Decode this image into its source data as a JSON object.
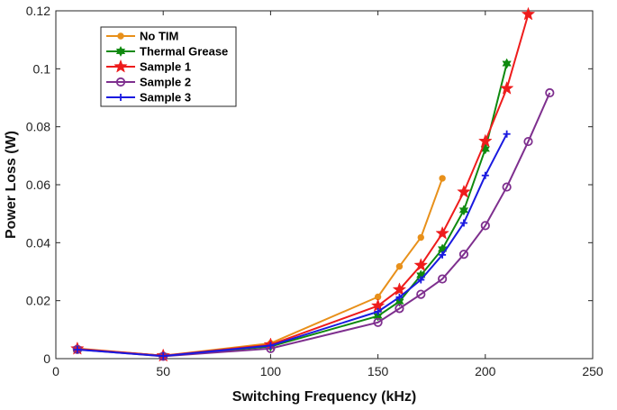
{
  "chart_data": {
    "type": "line",
    "title": "",
    "xlabel": "Switching Frequency (kHz)",
    "ylabel": "Power Loss (W)",
    "xlim": [
      0,
      250
    ],
    "ylim": [
      0,
      0.12
    ],
    "x_ticks": [
      0,
      50,
      100,
      150,
      200,
      250
    ],
    "y_ticks": [
      0,
      0.02,
      0.04,
      0.06,
      0.08,
      0.1,
      0.12
    ],
    "x_tick_labels": [
      "0",
      "50",
      "100",
      "150",
      "200",
      "250"
    ],
    "y_tick_labels": [
      "0",
      "0.02",
      "0.04",
      "0.06",
      "0.08",
      "0.1",
      "0.12"
    ],
    "grid": false,
    "legend_position": "top-left",
    "series": [
      {
        "name": "No TIM",
        "color": "#E8901A",
        "marker": "dot",
        "x": [
          10,
          50,
          100,
          150,
          160,
          170,
          180
        ],
        "y": [
          0.0035,
          0.001,
          0.0053,
          0.0213,
          0.0318,
          0.0418,
          0.0622
        ]
      },
      {
        "name": "Thermal Grease",
        "color": "#0F8A0F",
        "marker": "hexagram",
        "x": [
          10,
          50,
          100,
          150,
          160,
          170,
          180,
          190,
          200,
          210
        ],
        "y": [
          0.0033,
          0.001,
          0.0042,
          0.0147,
          0.0197,
          0.0288,
          0.0378,
          0.0512,
          0.0723,
          0.1018
        ]
      },
      {
        "name": "Sample 1",
        "color": "#EE1C1C",
        "marker": "star",
        "x": [
          10,
          50,
          100,
          150,
          160,
          170,
          180,
          190,
          200,
          210,
          220
        ],
        "y": [
          0.0034,
          0.001,
          0.0048,
          0.0182,
          0.0238,
          0.0322,
          0.0432,
          0.0575,
          0.075,
          0.0932,
          0.1188
        ]
      },
      {
        "name": "Sample 2",
        "color": "#7E2F8E",
        "marker": "circle",
        "x": [
          10,
          50,
          100,
          150,
          160,
          170,
          180,
          190,
          200,
          210,
          220,
          230
        ],
        "y": [
          0.0032,
          0.0008,
          0.0035,
          0.0125,
          0.0173,
          0.0222,
          0.0275,
          0.036,
          0.0459,
          0.0592,
          0.0749,
          0.0917
        ]
      },
      {
        "name": "Sample 3",
        "color": "#1A1AE0",
        "marker": "plus",
        "x": [
          10,
          50,
          100,
          150,
          160,
          170,
          180,
          190,
          200,
          210
        ],
        "y": [
          0.0031,
          0.0009,
          0.0045,
          0.0162,
          0.0212,
          0.0272,
          0.0358,
          0.0468,
          0.0632,
          0.0775
        ]
      }
    ]
  }
}
